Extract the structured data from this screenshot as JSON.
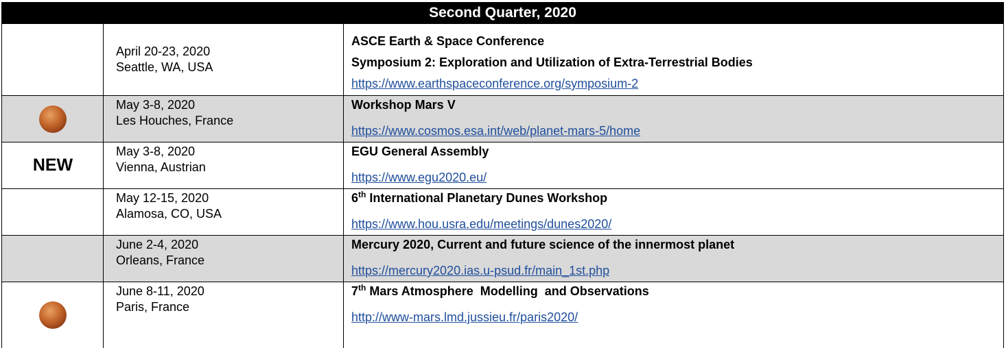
{
  "header": {
    "title": "Second Quarter, 2020"
  },
  "rows": [
    {
      "date": "April 20-23, 2020",
      "location": "Seattle, WA, USA",
      "title": [
        "ASCE Earth & Space Conference",
        "Symposium 2: Exploration and Utilization of Extra-Terrestrial Bodies"
      ],
      "link": "https://www.earthspaceconference.org/symposium-2"
    },
    {
      "date": "May 3-8, 2020",
      "location": "Les Houches, France",
      "title": [
        "Workshop Mars V"
      ],
      "link": "https://www.cosmos.esa.int/web/planet-mars-5/home"
    },
    {
      "marker": "NEW",
      "date": "May 3-8, 2020",
      "location": "Vienna, Austrian",
      "title": [
        "EGU General Assembly"
      ],
      "link": "https://www.egu2020.eu/"
    },
    {
      "date": "May 12-15, 2020",
      "location": "Alamosa, CO, USA",
      "title": [
        {
          "number": "6",
          "suffix": "th",
          "text": " International Planetary Dunes Workshop"
        }
      ],
      "link": "https://www.hou.usra.edu/meetings/dunes2020/"
    },
    {
      "date": "June 2-4, 2020",
      "location": "Orleans, France",
      "title": [
        "Mercury 2020, Current and future science of the innermost planet"
      ],
      "link": "https://mercury2020.ias.u-psud.fr/main_1st.php"
    },
    {
      "date": "June 8-11, 2020",
      "location": "Paris, France",
      "title": [
        {
          "number": "7",
          "suffix": "th",
          "text": " Mars Atmosphere  Modelling  and Observations"
        }
      ],
      "link": "http://www-mars.lmd.jussieu.fr/paris2020/"
    }
  ]
}
